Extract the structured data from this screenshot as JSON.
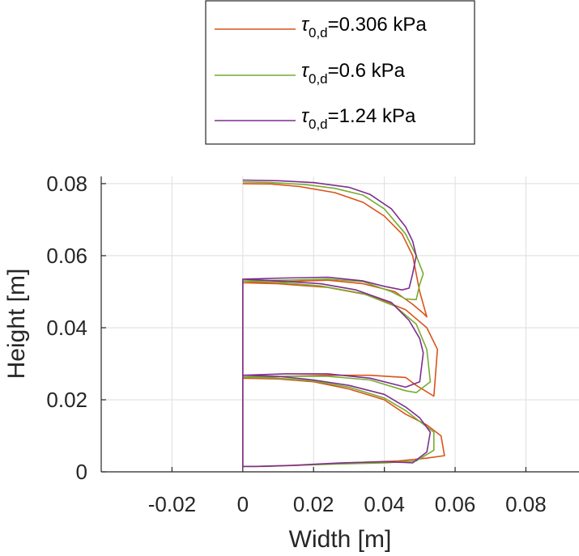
{
  "chart_data": {
    "type": "line",
    "xlabel": "Width [m]",
    "ylabel": "Height [m]",
    "xlim": [
      -0.04,
      0.095
    ],
    "ylim": [
      0,
      0.082
    ],
    "x_ticks": [
      -0.02,
      0,
      0.02,
      0.04,
      0.06,
      0.08
    ],
    "x_tick_labels": [
      "-0.02",
      "0",
      "0.02",
      "0.04",
      "0.06",
      "0.08"
    ],
    "y_ticks": [
      0,
      0.02,
      0.04,
      0.06,
      0.08
    ],
    "y_tick_labels": [
      "0",
      "0.02",
      "0.04",
      "0.06",
      "0.08"
    ],
    "grid": true,
    "legend_position": "top-center, outside the axes",
    "series": [
      {
        "legend_symbol": "τ",
        "legend_subscript": "0,d",
        "legend_value": "=0.306 kPa",
        "color": "#D95319",
        "x": [
          0,
          0,
          0.01,
          0.02,
          0.03,
          0.04,
          0.046,
          0.052,
          0.056,
          0.057,
          0.052,
          0.044,
          0.03,
          0.016,
          0.006,
          0,
          0,
          0.01,
          0.024,
          0.036,
          0.046,
          0.052,
          0.055,
          0.054,
          0.049,
          0.046,
          0.036,
          0.024,
          0.012,
          0,
          0,
          0.012,
          0.024,
          0.034,
          0.043,
          0.048,
          0.051,
          0.052,
          0.05,
          0.048,
          0.045,
          0.04,
          0.034,
          0.026,
          0.016,
          0.008,
          0
        ],
        "y": [
          0.0015,
          0.026,
          0.0258,
          0.025,
          0.023,
          0.02,
          0.016,
          0.013,
          0.01,
          0.0045,
          0.0038,
          0.003,
          0.0025,
          0.0018,
          0.0015,
          0.0015,
          0.0525,
          0.0522,
          0.0512,
          0.049,
          0.045,
          0.04,
          0.034,
          0.021,
          0.024,
          0.0262,
          0.0268,
          0.0268,
          0.0265,
          0.026,
          0.0525,
          0.0528,
          0.0532,
          0.0522,
          0.05,
          0.0465,
          0.044,
          0.043,
          0.05,
          0.06,
          0.066,
          0.071,
          0.0748,
          0.0775,
          0.0792,
          0.0799,
          0.08
        ],
        "series_name": "τ0,d=0.306 kPa"
      },
      {
        "legend_symbol": "τ",
        "legend_subscript": "0,d",
        "legend_value": "=0.6 kPa",
        "color": "#77AC30",
        "x": [
          0,
          0,
          0.01,
          0.02,
          0.03,
          0.04,
          0.046,
          0.05,
          0.054,
          0.054,
          0.049,
          0.04,
          0.028,
          0.014,
          0.004,
          0,
          0,
          0.01,
          0.022,
          0.034,
          0.043,
          0.049,
          0.052,
          0.053,
          0.049,
          0.046,
          0.036,
          0.024,
          0.012,
          0,
          0,
          0.012,
          0.024,
          0.034,
          0.042,
          0.046,
          0.049,
          0.05,
          0.051,
          0.049,
          0.046,
          0.04,
          0.034,
          0.026,
          0.018,
          0.008,
          0
        ],
        "y": [
          0.0015,
          0.0263,
          0.026,
          0.0252,
          0.0235,
          0.0205,
          0.017,
          0.014,
          0.011,
          0.006,
          0.003,
          0.0025,
          0.0022,
          0.0018,
          0.0015,
          0.0015,
          0.053,
          0.0526,
          0.0516,
          0.0495,
          0.046,
          0.041,
          0.034,
          0.025,
          0.022,
          0.0225,
          0.0255,
          0.0265,
          0.0265,
          0.0263,
          0.053,
          0.0532,
          0.0535,
          0.0528,
          0.05,
          0.048,
          0.0478,
          0.052,
          0.055,
          0.06,
          0.066,
          0.073,
          0.0768,
          0.0787,
          0.0797,
          0.0803,
          0.0805
        ],
        "series_name": "τ0,d=0.6 kPa"
      },
      {
        "legend_symbol": "τ",
        "legend_subscript": "0,d",
        "legend_value": "=1.24 kPa",
        "color": "#7E2F8E",
        "x": [
          0,
          0,
          0.01,
          0.02,
          0.03,
          0.04,
          0.046,
          0.05,
          0.053,
          0.052,
          0.048,
          0.04,
          0.028,
          0.014,
          0.004,
          0,
          0,
          0.01,
          0.022,
          0.032,
          0.042,
          0.047,
          0.05,
          0.051,
          0.05,
          0.046,
          0.036,
          0.024,
          0.012,
          0,
          0,
          0.012,
          0.024,
          0.034,
          0.04,
          0.045,
          0.047,
          0.048,
          0.049,
          0.048,
          0.046,
          0.042,
          0.036,
          0.03,
          0.02,
          0.01,
          0
        ],
        "y": [
          0.0015,
          0.0268,
          0.0265,
          0.0255,
          0.024,
          0.0215,
          0.018,
          0.015,
          0.011,
          0.0055,
          0.0025,
          0.0028,
          0.0025,
          0.0018,
          0.0015,
          0.0015,
          0.0535,
          0.053,
          0.0522,
          0.0505,
          0.047,
          0.042,
          0.037,
          0.033,
          0.025,
          0.0235,
          0.026,
          0.0272,
          0.0272,
          0.0268,
          0.0535,
          0.0538,
          0.054,
          0.053,
          0.0515,
          0.0505,
          0.051,
          0.055,
          0.06,
          0.064,
          0.068,
          0.073,
          0.077,
          0.079,
          0.0803,
          0.0808,
          0.081
        ],
        "series_name": "τ0,d=1.24 kPa"
      }
    ]
  }
}
